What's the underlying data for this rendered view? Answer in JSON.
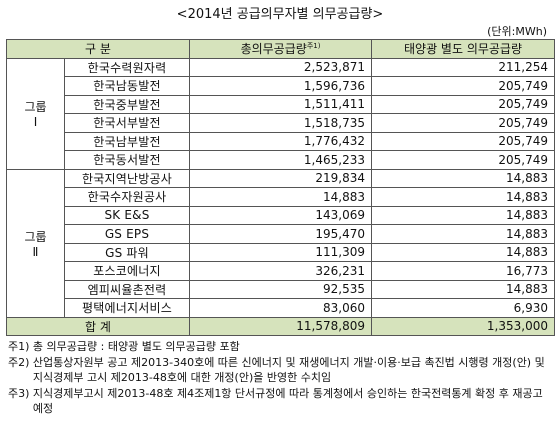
{
  "title": "<2014년 공급의무자별 의무공급량>",
  "unit": "(단위:MWh)",
  "headers": {
    "category": "구 분",
    "total_obligation": "총의무공급량",
    "total_obligation_sup": "주1)",
    "solar_obligation": "태양광 별도 의무공급량"
  },
  "groups": [
    {
      "label_top": "그룹",
      "label_bottom": "Ⅰ",
      "rows": [
        {
          "company": "한국수력원자력",
          "total": "2,523,871",
          "solar": "211,254"
        },
        {
          "company": "한국남동발전",
          "total": "1,596,736",
          "solar": "205,749"
        },
        {
          "company": "한국중부발전",
          "total": "1,511,411",
          "solar": "205,749"
        },
        {
          "company": "한국서부발전",
          "total": "1,518,735",
          "solar": "205,749"
        },
        {
          "company": "한국남부발전",
          "total": "1,776,432",
          "solar": "205,749"
        },
        {
          "company": "한국동서발전",
          "total": "1,465,233",
          "solar": "205,749"
        }
      ]
    },
    {
      "label_top": "그룹",
      "label_bottom": "Ⅱ",
      "rows": [
        {
          "company": "한국지역난방공사",
          "total": "219,834",
          "solar": "14,883"
        },
        {
          "company": "한국수자원공사",
          "total": "14,883",
          "solar": "14,883"
        },
        {
          "company": "SK E&S",
          "total": "143,069",
          "solar": "14,883"
        },
        {
          "company": "GS EPS",
          "total": "195,470",
          "solar": "14,883"
        },
        {
          "company": "GS 파워",
          "total": "111,309",
          "solar": "14,883"
        },
        {
          "company": "포스코에너지",
          "total": "326,231",
          "solar": "16,773"
        },
        {
          "company": "엠피씨율촌전력",
          "total": "92,535",
          "solar": "14,883"
        },
        {
          "company": "평택에너지서비스",
          "total": "83,060",
          "solar": "6,930"
        }
      ]
    }
  ],
  "total_row": {
    "label": "합 계",
    "total": "11,578,809",
    "solar": "1,353,000"
  },
  "notes": [
    {
      "label": "주1)",
      "text": "총 의무공급량 : 태양광 별도 의무공급량 포함"
    },
    {
      "label": "주2)",
      "text": "산업통상자원부 공고 제2013-340호에 따른 신에너지 및 재생에너지 개발·이용·보급 촉진법 시행령 개정(안) 및 지식경제부 고시 제2013-48호에 대한 개정(안)을 반영한 수치임"
    },
    {
      "label": "주3)",
      "text": "지식경제부고시 제2013-48호 제4조제1항 단서규정에 따라 통계청에서 승인하는 한국전력통계 확정 후 재공고 예정"
    }
  ]
}
